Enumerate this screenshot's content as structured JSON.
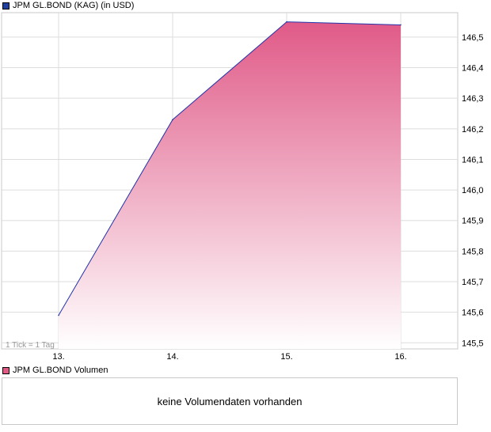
{
  "price_legend": {
    "label": "JPM GL.BOND (KAG) (in USD)",
    "color": "#1f3f9e"
  },
  "volume_legend": {
    "label": "JPM GL.BOND Volumen",
    "color": "#e05a84"
  },
  "volume_message": "keine Volumendaten vorhanden",
  "tick_note": "1 Tick = 1 Tag",
  "colors": {
    "line": "#2233aa",
    "fill_top": "#e05a88",
    "fill_bottom": "#ffffff",
    "grid": "#dddddd"
  },
  "chart_data": {
    "type": "area",
    "x": [
      "13.",
      "14.",
      "15.",
      "16."
    ],
    "series": [
      {
        "name": "JPM GL.BOND (KAG) (in USD)",
        "values": [
          145.59,
          146.23,
          146.55,
          146.54
        ]
      }
    ],
    "y_ticks": [
      "146,5",
      "146,4",
      "146,3",
      "146,2",
      "146,1",
      "146,0",
      "145,9",
      "145,8",
      "145,7",
      "145,6",
      "145,5"
    ],
    "y_tick_values": [
      146.5,
      146.4,
      146.3,
      146.2,
      146.1,
      146.0,
      145.9,
      145.8,
      145.7,
      145.6,
      145.5
    ],
    "ylim": [
      145.48,
      146.58
    ],
    "grid": true
  }
}
